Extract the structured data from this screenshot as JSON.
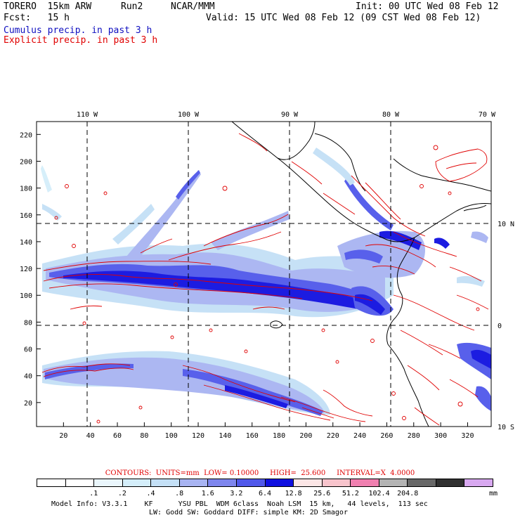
{
  "header": {
    "model": "TORERO  15km ARW",
    "run": "Run2",
    "org": "NCAR/MMM",
    "init": "Init: 00 UTC Wed 08 Feb 12",
    "fcst": "Fcst:   15 h",
    "valid": "Valid: 15 UTC Wed 08 Feb 12 (09 CST Wed 08 Feb 12)",
    "line_cumulus": "Cumulus precip. in past 3 h",
    "line_explicit": "Explicit precip. in past 3 h"
  },
  "map": {
    "top_lon_labels": [
      "110 W",
      "100 W",
      "90 W",
      "80 W",
      "70 W"
    ],
    "right_lat_labels": [
      "10 N",
      "0",
      "10 S"
    ],
    "y_ticks": [
      "20",
      "40",
      "60",
      "80",
      "100",
      "120",
      "140",
      "160",
      "180",
      "200",
      "220"
    ],
    "x_ticks": [
      "20",
      "40",
      "60",
      "80",
      "100",
      "120",
      "140",
      "160",
      "180",
      "200",
      "220",
      "240",
      "260",
      "280",
      "300",
      "320"
    ],
    "shaded_field": "Cumulus precip. in past 3 h",
    "contour_field": "Explicit precip. in past 3 h",
    "coast_color": "#000000",
    "contour_color": "#e00000"
  },
  "contours": {
    "label": "CONTOURS:",
    "units": "UNITS=mm",
    "low": "LOW= 0.10000",
    "high": "HIGH=  25.600",
    "interval": "INTERVAL=X  4.0000"
  },
  "legend": {
    "colors": [
      "#ffffff",
      "#ffffff",
      "#eaf6fc",
      "#d4eefa",
      "#c4e0f6",
      "#a8b4f2",
      "#7e86ee",
      "#5058ea",
      "#1010e0",
      "#fce6e6",
      "#f8c4cc",
      "#f080b0",
      "#b4b4b4",
      "#686868",
      "#303030",
      "#d8a8f0"
    ],
    "labels": [
      ".1",
      ".2",
      ".4",
      ".8",
      "1.6",
      "3.2",
      "6.4",
      "12.8",
      "25.6",
      "51.2",
      "102.4",
      "204.8"
    ],
    "unit": "mm"
  },
  "info": {
    "line1": "Model Info: V3.3.1    KF      YSU PBL  WDM 6class  Noah LSM  15 km,   44 levels,  113 sec",
    "line2": "LW: Godd SW: Goddard DIFF: simple KM: 2D Smagor"
  }
}
